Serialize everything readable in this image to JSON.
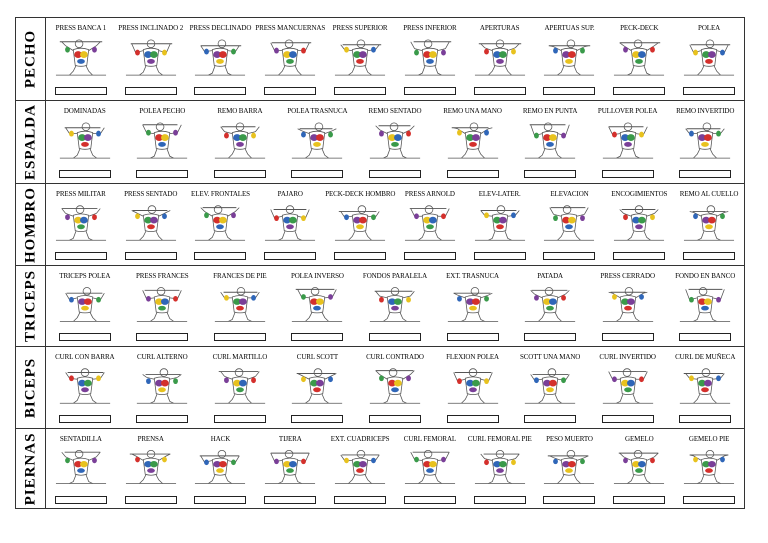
{
  "sections": [
    {
      "label": "PECHO",
      "exercises": [
        "PRESS BANCA 1",
        "PRESS INCLINADO 2",
        "PRESS DECLINADO",
        "PRESS MANCUERNAS",
        "PRESS  SUPERIOR",
        "PRESS INFERIOR",
        "APERTURAS",
        "APERTUAS SUP.",
        "PECK-DECK",
        "POLEA"
      ]
    },
    {
      "label": "ESPALDA",
      "exercises": [
        "DOMINADAS",
        "POLEA PECHO",
        "REMO BARRA",
        "POLEA TRASNUCA",
        "REMO SENTADO",
        "REMO UNA MANO",
        "REMO EN PUNTA",
        "PULLOVER POLEA",
        "REMO INVERTIDO"
      ]
    },
    {
      "label": "HOMBRO",
      "exercises": [
        "PRESS MILITAR",
        "PRESS SENTADO",
        "ELEV. FRONTALES",
        "PAJARO",
        "PECK-DECK HOMBRO",
        "PRESS ARNOLD",
        "ELEV-LATER.",
        "ELEVACION",
        "ENCOGIMIENTOS",
        "REMO AL CUELLO"
      ]
    },
    {
      "label": "TRICEPS",
      "exercises": [
        "TRICEPS POLEA",
        "PRESS FRANCES",
        "FRANCES DE PIE",
        "POLEA INVERSO",
        "FONDOS PARALELA",
        "EXT. TRASNUCA",
        "PATADA",
        "PRESS CERRADO",
        "FONDO  EN BANCO"
      ]
    },
    {
      "label": "BICEPS",
      "exercises": [
        "CURL CON BARRA",
        "CURL ALTERNO",
        "CURL MARTILLO",
        "CURL SCOTT",
        "CURL CONTRADO",
        "FLEXION POLEA",
        "SCOTT UNA MANO",
        "CURL INVERTIDO",
        "CURL  DE MUÑECA"
      ]
    },
    {
      "label": "PIERNAS",
      "exercises": [
        "SENTADILLA",
        "PRENSA",
        "HACK",
        "TIJERA",
        "EXT. CUADRICEPS",
        "CURL FEMORAL",
        "CURL FEMORAL PIE",
        "PESO MUERTO",
        "GEMELO",
        "GEMELO PIE"
      ]
    }
  ],
  "colors": {
    "muscle_a": "#d4302c",
    "muscle_b": "#e8c21e",
    "muscle_c": "#2f66b8",
    "muscle_d": "#3a9a4a",
    "muscle_e": "#7a3f98",
    "line": "#555555"
  },
  "figure_icon": "exercise-illustration"
}
